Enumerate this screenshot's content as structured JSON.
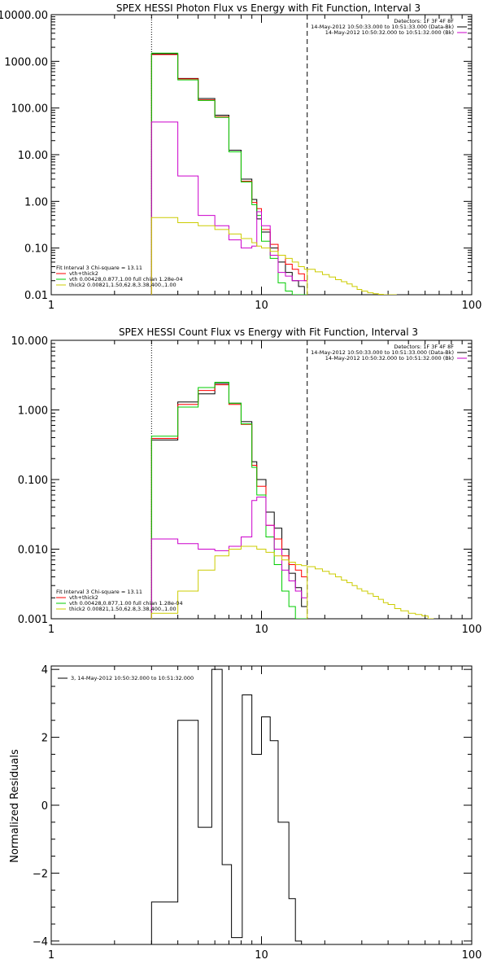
{
  "chart_data": [
    {
      "type": "line",
      "title": "SPEX HESSI Photon Flux vs Energy with Fit Function, Interval 3",
      "xscale": "log",
      "yscale": "log",
      "xlim": [
        1,
        100
      ],
      "ylim": [
        0.01,
        10000
      ],
      "xticks": [
        {
          "v": 1,
          "label": "1"
        },
        {
          "v": 10,
          "label": "10"
        },
        {
          "v": 100,
          "label": "100"
        }
      ],
      "yticks": [
        {
          "v": 0.01,
          "label": "0.01"
        },
        {
          "v": 0.1,
          "label": "0.10"
        },
        {
          "v": 1,
          "label": "1.00"
        },
        {
          "v": 10,
          "label": "10.00"
        },
        {
          "v": 100,
          "label": "100.00"
        },
        {
          "v": 1000,
          "label": "1000.00"
        },
        {
          "v": 10000,
          "label": "10000.00"
        }
      ],
      "vlines": [
        {
          "x": 3.0,
          "style": "dotted"
        },
        {
          "x": 16.5,
          "style": "dashed"
        }
      ],
      "legend_tr": {
        "lines": [
          "Detectors: 1F 3F 4F 8F",
          "14-May-2012 10:50:33.000 to 10:51:33.000 (Data-Bk)",
          "14-May-2012 10:50:32.000 to 10:51:32.000 (Bk)"
        ],
        "colors": [
          "#000000",
          "#cc00cc"
        ]
      },
      "legend_bl": {
        "lines": [
          "Fit Interval 3   Chi-square = 13.11",
          "vth+thick2",
          "vth 0.00428,0.877,1.00   full chian 1.28e-04",
          "thick2 0.00821,1.50,62.8,3.38,400.,1.00"
        ],
        "colors": [
          "",
          "#ff0000",
          "#00cc00",
          "#cccc00"
        ]
      },
      "edges": [
        3.0,
        3.5,
        4.0,
        4.5,
        5.0,
        5.5,
        6.0,
        6.5,
        7.0,
        7.5,
        8.0,
        8.5,
        9.0,
        9.5,
        10.0,
        10.5,
        11.0,
        11.5,
        12.0,
        12.5,
        13.0,
        13.5,
        14.0,
        14.5,
        15.0,
        15.5,
        16.0,
        16.5
      ],
      "series": [
        {
          "color": "#000000",
          "values": [
            1450,
            1450,
            430,
            430,
            160,
            160,
            70,
            70,
            12.5,
            12.5,
            3.0,
            3.0,
            1.1,
            0.42,
            0.22,
            0.22,
            0.1,
            0.1,
            0.05,
            0.05,
            0.03,
            0.03,
            0.02,
            0.02,
            0.015,
            0.015,
            0.01
          ]
        },
        {
          "color": "#ff0000",
          "values": [
            1400,
            1400,
            420,
            420,
            150,
            150,
            65,
            65,
            11.5,
            11.5,
            2.7,
            2.7,
            0.95,
            0.7,
            0.25,
            0.25,
            0.12,
            0.12,
            0.07,
            0.07,
            0.045,
            0.045,
            0.035,
            0.035,
            0.028,
            0.028,
            0.02
          ]
        },
        {
          "color": "#00cc00",
          "values": [
            1500,
            1500,
            400,
            400,
            145,
            145,
            63,
            63,
            11.5,
            11.5,
            2.6,
            2.6,
            0.85,
            0.5,
            0.14,
            0.14,
            0.06,
            0.06,
            0.018,
            0.018,
            0.012,
            0.012,
            0.01,
            0.01,
            0.01,
            0.01,
            0.01
          ]
        },
        {
          "color": "#cc00cc",
          "values": [
            50,
            50,
            3.5,
            3.5,
            0.5,
            0.5,
            0.3,
            0.3,
            0.15,
            0.15,
            0.1,
            0.1,
            0.11,
            0.6,
            0.3,
            0.3,
            0.07,
            0.07,
            0.03,
            0.03,
            0.025,
            0.025,
            0.02,
            0.02,
            0.02,
            0.02,
            0.02
          ]
        },
        {
          "color": "#cccc00",
          "values": [
            0.45,
            0.45,
            0.35,
            0.35,
            0.3,
            0.3,
            0.25,
            0.25,
            0.2,
            0.2,
            0.16,
            0.16,
            0.13,
            0.11,
            0.1,
            0.1,
            0.085,
            0.085,
            0.07,
            0.07,
            0.06,
            0.06,
            0.05,
            0.05,
            0.04,
            0.04,
            0.035
          ]
        }
      ],
      "tail_edges": [
        16.5,
        18,
        19.5,
        21,
        22.5,
        24,
        25.5,
        27,
        28.5,
        30,
        32,
        34,
        36,
        38,
        40,
        42,
        44
      ],
      "tail_series": [
        {
          "color": "#cccc00",
          "values": [
            0.035,
            0.031,
            0.027,
            0.024,
            0.021,
            0.019,
            0.017,
            0.015,
            0.013,
            0.012,
            0.011,
            0.0105,
            0.0102,
            0.01,
            0.01,
            0.01
          ]
        }
      ]
    },
    {
      "type": "line",
      "title": "SPEX HESSI Count Flux vs Energy with Fit Function, Interval 3",
      "xscale": "log",
      "yscale": "log",
      "xlim": [
        1,
        100
      ],
      "ylim": [
        0.001,
        10
      ],
      "xticks": [
        {
          "v": 1,
          "label": "1"
        },
        {
          "v": 10,
          "label": "10"
        },
        {
          "v": 100,
          "label": "100"
        }
      ],
      "yticks": [
        {
          "v": 0.001,
          "label": "0.001"
        },
        {
          "v": 0.01,
          "label": "0.010"
        },
        {
          "v": 0.1,
          "label": "0.100"
        },
        {
          "v": 1,
          "label": "1.000"
        },
        {
          "v": 10,
          "label": "10.000"
        }
      ],
      "vlines": [
        {
          "x": 3.0,
          "style": "dotted"
        },
        {
          "x": 16.5,
          "style": "dashed"
        }
      ],
      "legend_tr": {
        "lines": [
          "Detectors: 1F 3F 4F 8F",
          "14-May-2012 10:50:33.000 to 10:51:33.000 (Data-Bk)",
          "14-May-2012 10:50:32.000 to 10:51:32.000 (Bk)"
        ],
        "colors": [
          "#000000",
          "#cc00cc"
        ]
      },
      "legend_bl": {
        "lines": [
          "Fit Interval 3   Chi-square = 13.11",
          "vth+thick2",
          "vth 0.00428,0.877,1.00   full chian 1.28e-04",
          "thick2 0.00821,1.50,62.8,3.38,400.,1.00"
        ],
        "colors": [
          "",
          "#ff0000",
          "#00cc00",
          "#cccc00"
        ]
      },
      "edges": [
        3.0,
        3.5,
        4.0,
        4.5,
        5.0,
        5.5,
        6.0,
        6.5,
        7.0,
        7.5,
        8.0,
        8.5,
        9.0,
        9.5,
        10.0,
        10.5,
        11.0,
        11.5,
        12.0,
        12.5,
        13.0,
        13.5,
        14.0,
        14.5,
        15.0,
        15.5,
        16.0,
        16.5
      ],
      "series": [
        {
          "color": "#000000",
          "values": [
            0.37,
            0.37,
            1.3,
            1.3,
            1.7,
            1.7,
            2.4,
            2.4,
            1.25,
            1.25,
            0.68,
            0.68,
            0.18,
            0.1,
            0.1,
            0.034,
            0.034,
            0.02,
            0.02,
            0.01,
            0.01,
            0.0045,
            0.0045,
            0.0028,
            0.0028,
            0.0015,
            0.0015
          ]
        },
        {
          "color": "#ff0000",
          "values": [
            0.39,
            0.39,
            1.2,
            1.2,
            1.9,
            1.9,
            2.3,
            2.3,
            1.2,
            1.2,
            0.62,
            0.62,
            0.16,
            0.08,
            0.08,
            0.022,
            0.022,
            0.014,
            0.014,
            0.008,
            0.008,
            0.006,
            0.006,
            0.005,
            0.005,
            0.004,
            0.004
          ]
        },
        {
          "color": "#00cc00",
          "values": [
            0.42,
            0.42,
            1.1,
            1.1,
            2.1,
            2.1,
            2.5,
            2.5,
            1.25,
            1.25,
            0.63,
            0.63,
            0.15,
            0.06,
            0.06,
            0.015,
            0.015,
            0.006,
            0.006,
            0.0025,
            0.0025,
            0.0015,
            0.0015,
            0.001,
            0.001,
            0.001,
            0.001
          ]
        },
        {
          "color": "#cc00cc",
          "values": [
            0.014,
            0.014,
            0.012,
            0.012,
            0.01,
            0.01,
            0.0095,
            0.0095,
            0.011,
            0.011,
            0.015,
            0.015,
            0.05,
            0.056,
            0.056,
            0.022,
            0.022,
            0.01,
            0.01,
            0.005,
            0.005,
            0.0035,
            0.0035,
            0.0025,
            0.0025,
            0.002,
            0.002
          ]
        },
        {
          "color": "#cccc00",
          "values": [
            0.0012,
            0.0012,
            0.0025,
            0.0025,
            0.005,
            0.005,
            0.008,
            0.008,
            0.01,
            0.01,
            0.011,
            0.011,
            0.011,
            0.01,
            0.01,
            0.009,
            0.009,
            0.008,
            0.008,
            0.007,
            0.007,
            0.0065,
            0.0065,
            0.006,
            0.006,
            0.0058,
            0.0058
          ]
        }
      ],
      "tail_edges": [
        16.5,
        18,
        19.5,
        21,
        22.5,
        24,
        25.5,
        27,
        28.5,
        30,
        32,
        34,
        36,
        38,
        40,
        43,
        46,
        50,
        54,
        58,
        62,
        66
      ],
      "tail_series": [
        {
          "color": "#cccc00",
          "values": [
            0.0056,
            0.0052,
            0.0048,
            0.0044,
            0.004,
            0.0036,
            0.0033,
            0.003,
            0.0027,
            0.0025,
            0.0023,
            0.0021,
            0.0019,
            0.0017,
            0.0016,
            0.0014,
            0.0013,
            0.0012,
            0.00115,
            0.0011,
            0.001
          ]
        }
      ]
    },
    {
      "type": "line",
      "title": "",
      "ylabel": "Normalized Residuals",
      "xscale": "log",
      "yscale": "linear",
      "xlim": [
        1,
        100
      ],
      "ylim": [
        -4.1,
        4.1
      ],
      "xticks": [
        {
          "v": 1,
          "label": "1"
        },
        {
          "v": 10,
          "label": "10"
        },
        {
          "v": 100,
          "label": "100"
        }
      ],
      "yticks": [
        {
          "v": -4,
          "label": "−4"
        },
        {
          "v": -2,
          "label": "−2"
        },
        {
          "v": 0,
          "label": "0"
        },
        {
          "v": 2,
          "label": "2"
        },
        {
          "v": 4,
          "label": "4"
        }
      ],
      "legend_tl": {
        "lines": [
          "3, 14-May-2012 10:50:32.000 to 10:51:32.000"
        ],
        "colors": [
          "#000000"
        ]
      },
      "edges": [
        3.0,
        4.0,
        5.0,
        5.8,
        6.5,
        7.2,
        8.1,
        9.0,
        10.0,
        11.0,
        12.0,
        13.5,
        14.5,
        15.5,
        16.5
      ],
      "series": [
        {
          "color": "#000000",
          "values": [
            -2.85,
            2.5,
            -0.65,
            4.0,
            -1.75,
            -3.9,
            3.25,
            1.5,
            2.6,
            1.9,
            -0.5,
            -2.75,
            -4.0,
            -4.1
          ]
        }
      ]
    }
  ]
}
